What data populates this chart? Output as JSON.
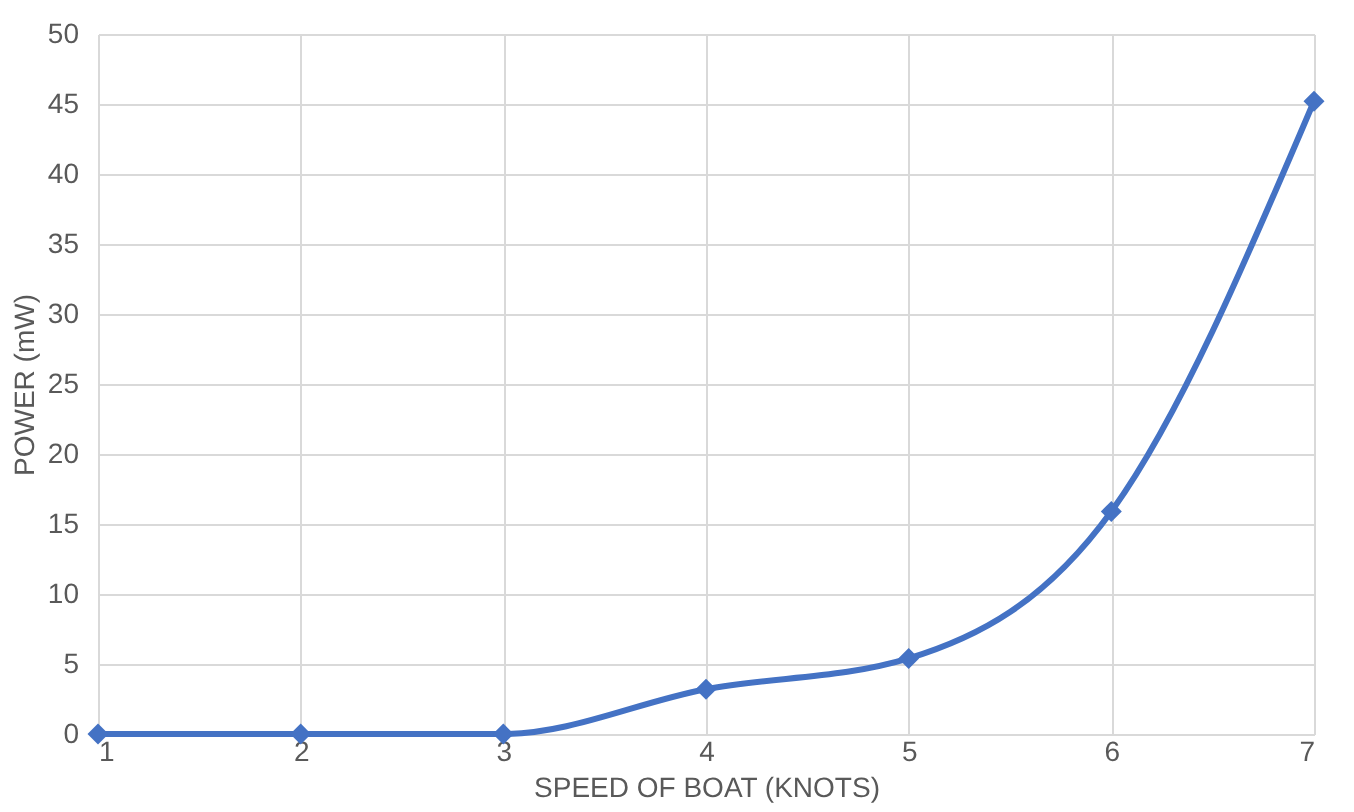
{
  "chart_data": {
    "type": "line",
    "xlabel": "SPEED OF BOAT (KNOTS)",
    "ylabel": "POWER (mW)",
    "x": [
      1,
      2,
      3,
      4,
      5,
      6,
      7
    ],
    "series": [
      {
        "color": "#4472c4",
        "values": [
          0,
          0,
          0,
          3.2,
          5.4,
          15.9,
          45.2
        ]
      }
    ],
    "xlim": [
      1,
      7
    ],
    "xticks": [
      1,
      2,
      3,
      4,
      5,
      6,
      7
    ],
    "ylim": [
      0,
      50
    ],
    "yticks": [
      0,
      5,
      10,
      15,
      20,
      25,
      30,
      35,
      40,
      45,
      50
    ],
    "grid": true,
    "marker": "diamond",
    "line_style": "solid"
  }
}
